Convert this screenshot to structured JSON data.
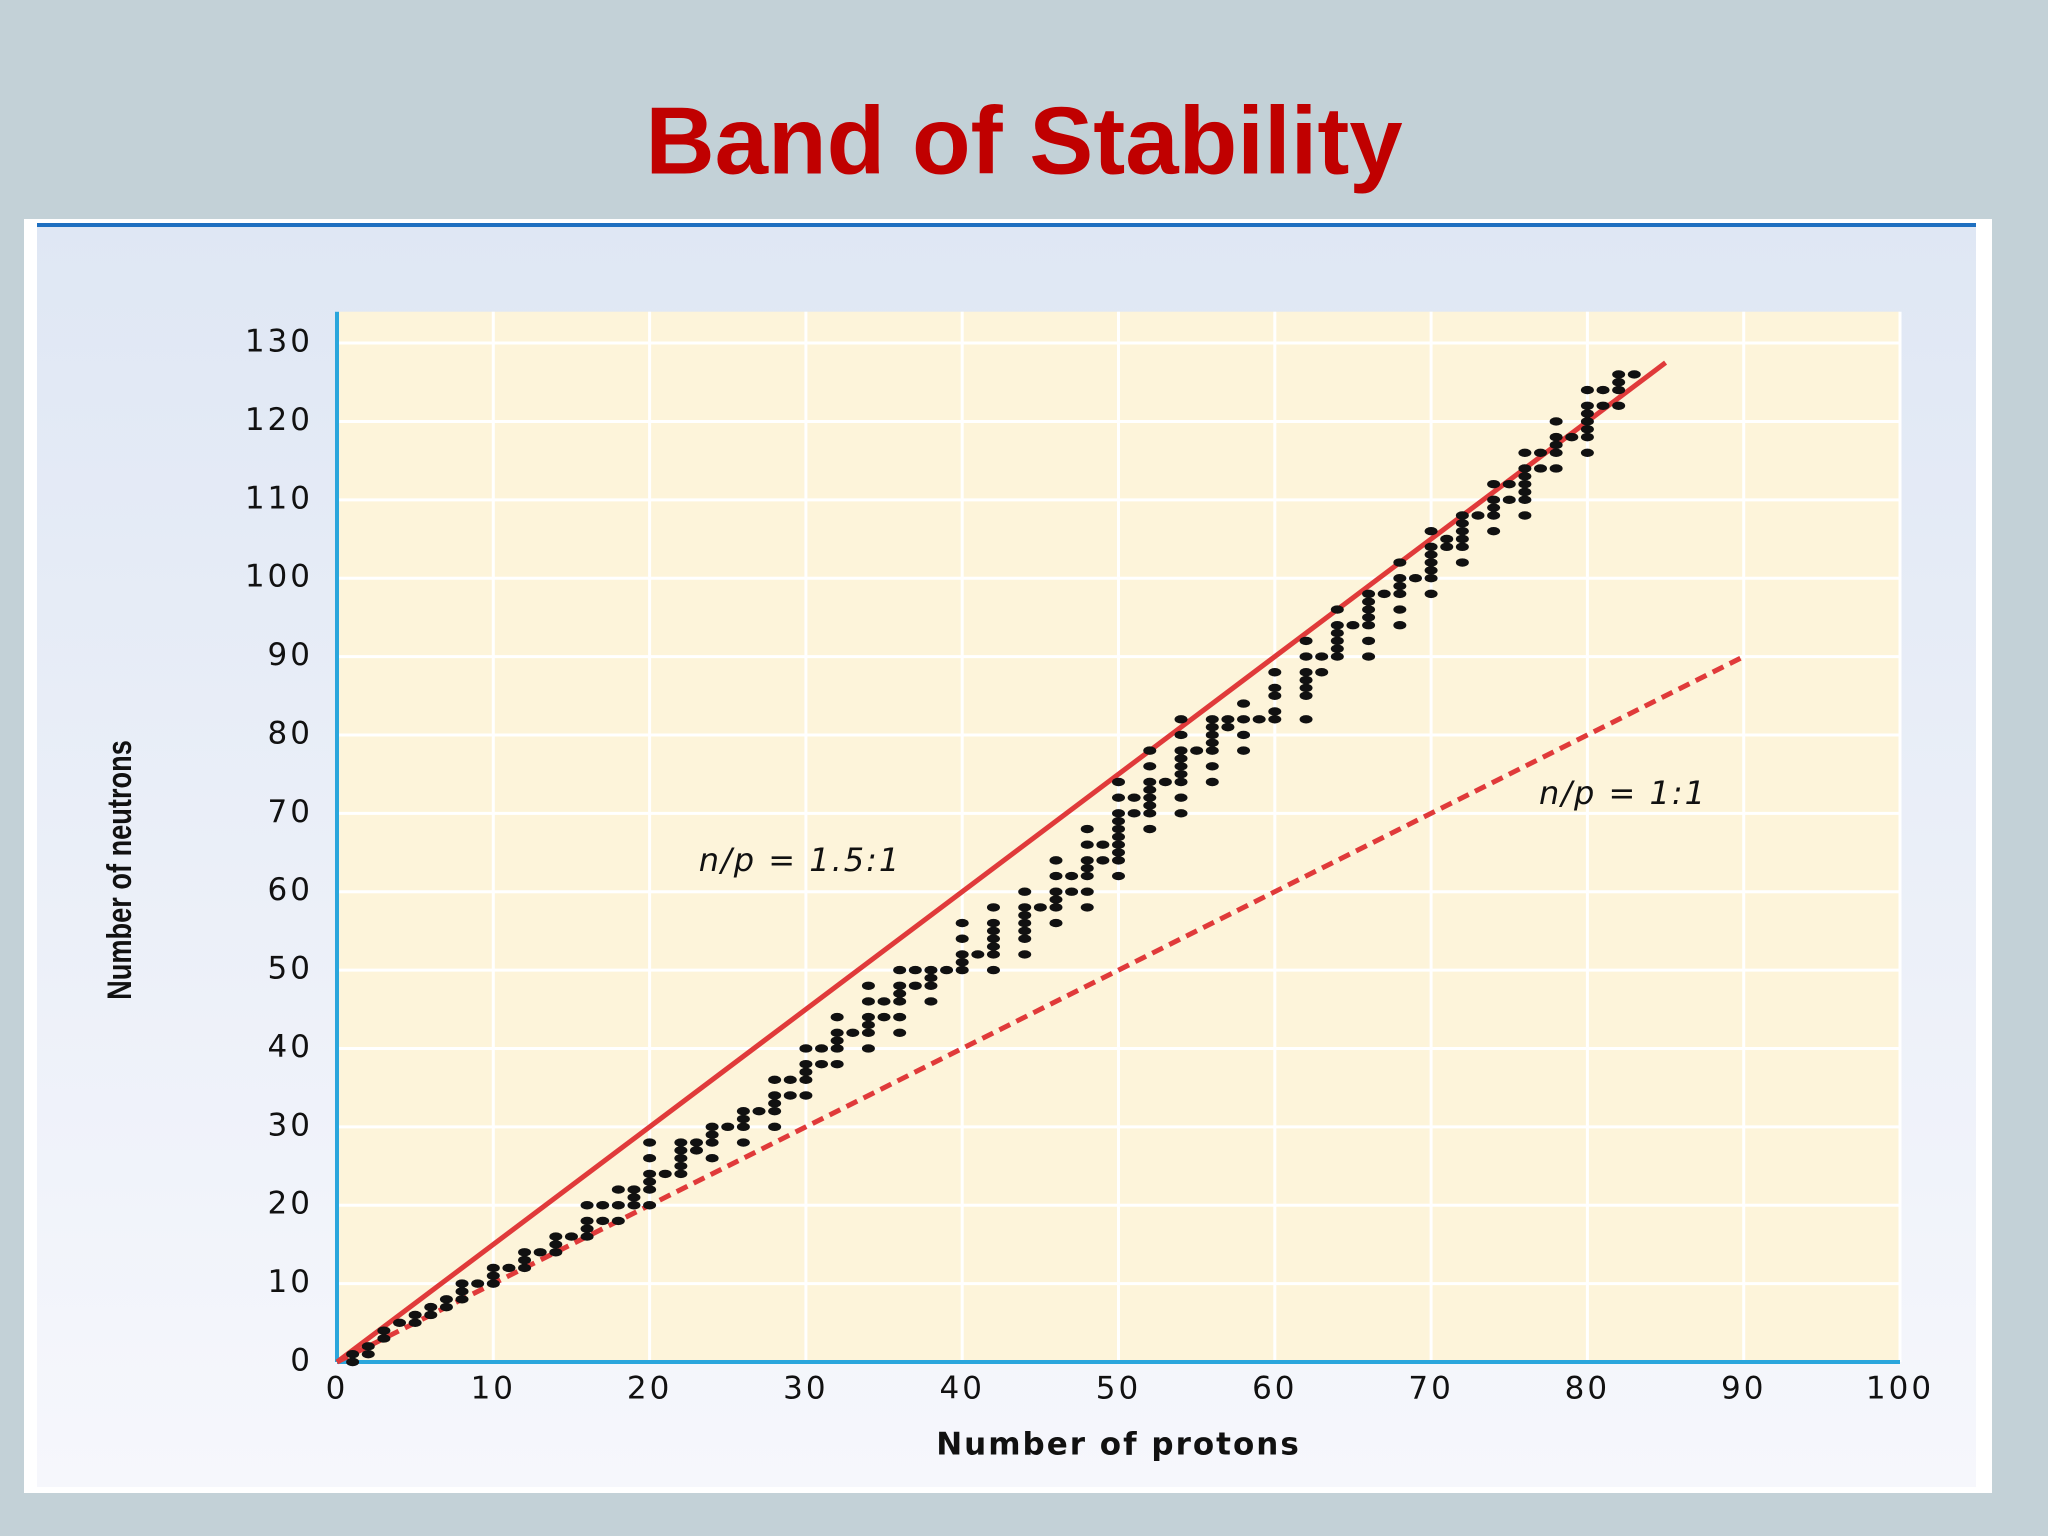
{
  "chart_data": {
    "type": "scatter",
    "title": "Band of Stability",
    "x_label": "Number of protons",
    "y_label": "Number of neutrons",
    "xlim": [
      0,
      100
    ],
    "ylim": [
      0,
      134
    ],
    "xticks": [
      0,
      10,
      20,
      30,
      40,
      50,
      60,
      70,
      80,
      90,
      100
    ],
    "yticks": [
      0,
      10,
      20,
      30,
      40,
      50,
      60,
      70,
      80,
      90,
      100,
      110,
      120,
      130
    ],
    "grid": true,
    "color": "#111111",
    "x": [
      1,
      1,
      2,
      2,
      3,
      3,
      4,
      5,
      5,
      6,
      6,
      7,
      7,
      8,
      8,
      8,
      9,
      10,
      10,
      10,
      11,
      12,
      12,
      12,
      13,
      14,
      14,
      14,
      15,
      16,
      16,
      16,
      16,
      17,
      17,
      18,
      18,
      18,
      19,
      19,
      19,
      20,
      20,
      20,
      20,
      20,
      20,
      21,
      22,
      22,
      22,
      22,
      22,
      23,
      23,
      24,
      24,
      24,
      24,
      25,
      26,
      26,
      26,
      26,
      27,
      28,
      28,
      28,
      28,
      28,
      29,
      29,
      30,
      30,
      30,
      30,
      30,
      31,
      31,
      32,
      32,
      32,
      32,
      32,
      33,
      34,
      34,
      34,
      34,
      34,
      34,
      35,
      35,
      36,
      36,
      36,
      36,
      36,
      36,
      37,
      37,
      38,
      38,
      38,
      38,
      39,
      40,
      40,
      40,
      40,
      40,
      41,
      42,
      42,
      42,
      42,
      42,
      42,
      42,
      44,
      44,
      44,
      44,
      44,
      44,
      44,
      45,
      46,
      46,
      46,
      46,
      46,
      46,
      47,
      47,
      48,
      48,
      48,
      48,
      48,
      48,
      48,
      49,
      49,
      50,
      50,
      50,
      50,
      50,
      50,
      50,
      50,
      50,
      50,
      51,
      51,
      52,
      52,
      52,
      52,
      52,
      52,
      52,
      52,
      53,
      54,
      54,
      54,
      54,
      54,
      54,
      54,
      54,
      54,
      55,
      56,
      56,
      56,
      56,
      56,
      56,
      56,
      57,
      57,
      58,
      58,
      58,
      58,
      59,
      60,
      60,
      60,
      60,
      60,
      62,
      62,
      62,
      62,
      62,
      62,
      62,
      63,
      63,
      64,
      64,
      64,
      64,
      64,
      64,
      65,
      66,
      66,
      66,
      66,
      66,
      66,
      66,
      67,
      68,
      68,
      68,
      68,
      68,
      68,
      69,
      70,
      70,
      70,
      70,
      70,
      70,
      70,
      71,
      71,
      72,
      72,
      72,
      72,
      72,
      72,
      73,
      74,
      74,
      74,
      74,
      74,
      75,
      75,
      76,
      76,
      76,
      76,
      76,
      76,
      76,
      77,
      77,
      78,
      78,
      78,
      78,
      78,
      79,
      80,
      80,
      80,
      80,
      80,
      80,
      80,
      81,
      81,
      82,
      82,
      82,
      82,
      83
    ],
    "values": [
      0,
      1,
      1,
      2,
      3,
      4,
      5,
      5,
      6,
      6,
      7,
      7,
      8,
      8,
      9,
      10,
      10,
      10,
      11,
      12,
      12,
      12,
      13,
      14,
      14,
      14,
      15,
      16,
      16,
      16,
      17,
      18,
      20,
      18,
      20,
      18,
      20,
      22,
      20,
      21,
      22,
      20,
      22,
      23,
      24,
      26,
      28,
      24,
      24,
      25,
      26,
      27,
      28,
      27,
      28,
      26,
      28,
      29,
      30,
      30,
      28,
      30,
      31,
      32,
      32,
      30,
      32,
      33,
      34,
      36,
      34,
      36,
      34,
      36,
      37,
      38,
      40,
      38,
      40,
      38,
      40,
      41,
      42,
      44,
      42,
      40,
      42,
      43,
      44,
      46,
      48,
      44,
      46,
      42,
      44,
      46,
      47,
      48,
      50,
      48,
      50,
      46,
      48,
      49,
      50,
      50,
      50,
      51,
      52,
      54,
      56,
      52,
      50,
      52,
      53,
      54,
      55,
      56,
      58,
      52,
      54,
      55,
      56,
      57,
      58,
      60,
      58,
      56,
      58,
      59,
      60,
      62,
      64,
      60,
      62,
      58,
      60,
      62,
      63,
      64,
      66,
      68,
      64,
      66,
      62,
      64,
      65,
      66,
      67,
      68,
      69,
      70,
      72,
      74,
      70,
      72,
      68,
      70,
      71,
      72,
      73,
      74,
      76,
      78,
      74,
      70,
      72,
      74,
      75,
      76,
      77,
      78,
      80,
      82,
      78,
      74,
      76,
      78,
      79,
      80,
      81,
      82,
      81,
      82,
      78,
      80,
      82,
      84,
      82,
      82,
      83,
      85,
      86,
      88,
      82,
      85,
      86,
      87,
      88,
      90,
      92,
      88,
      90,
      90,
      91,
      92,
      93,
      94,
      96,
      94,
      90,
      92,
      94,
      95,
      96,
      97,
      98,
      98,
      94,
      96,
      98,
      99,
      100,
      102,
      100,
      98,
      100,
      101,
      102,
      103,
      104,
      106,
      104,
      105,
      102,
      104,
      105,
      106,
      107,
      108,
      108,
      106,
      108,
      109,
      110,
      112,
      110,
      112,
      108,
      110,
      111,
      112,
      113,
      114,
      116,
      114,
      116,
      114,
      116,
      117,
      118,
      120,
      118,
      116,
      118,
      119,
      120,
      121,
      122,
      124,
      122,
      124,
      122,
      124,
      125,
      126,
      126
    ],
    "lines": [
      {
        "x": [
          0,
          85
        ],
        "values": [
          0,
          127.5
        ],
        "color": "#e03a3a",
        "dashed": false,
        "label": "n/p = 1.5:1"
      },
      {
        "x": [
          0,
          90
        ],
        "values": [
          0,
          90
        ],
        "color": "#e03a3a",
        "dashed": true,
        "label": "n/p = 1:1"
      }
    ]
  }
}
